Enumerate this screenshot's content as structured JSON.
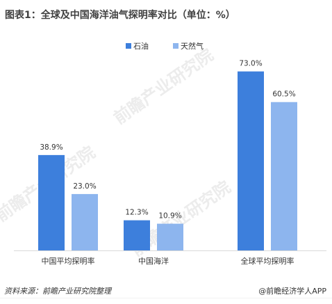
{
  "title": "图表1：全球及中国海洋油气探明率对比（单位：%）",
  "watermarks": [
    "前瞻产业研究院",
    "前瞻产业研究院",
    "前瞻产业研究院"
  ],
  "footer": {
    "source": "资料来源：前瞻产业研究院整理",
    "brand": "@前瞻经济学人APP"
  },
  "chart_data": {
    "type": "bar",
    "categories": [
      "中国平均探明率",
      "中国海洋",
      "全球平均探明率"
    ],
    "series": [
      {
        "name": "石油",
        "color": "#3d7fdc",
        "values": [
          38.9,
          12.3,
          73.0
        ],
        "labels": [
          "38.9%",
          "12.3%",
          "73.0%"
        ]
      },
      {
        "name": "天然气",
        "color": "#8db5ee",
        "values": [
          23.0,
          10.9,
          60.5
        ],
        "labels": [
          "23.0%",
          "10.9%",
          "60.5%"
        ]
      }
    ],
    "ylim": [
      0,
      80
    ],
    "grid": false,
    "legend_position": "top-center"
  }
}
